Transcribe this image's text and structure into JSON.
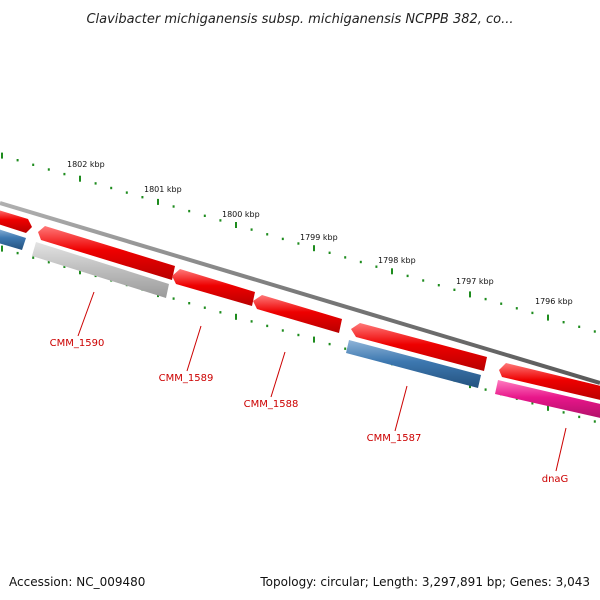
{
  "title": "Clavibacter michiganensis subsp. michiganensis NCPPB 382, co...",
  "accession": "Accession: NC_009480",
  "summary": "Topology: circular; Length: 3,297,891 bp; Genes: 3,043",
  "colors": {
    "forward_gene": "#ee0000",
    "reverse_gene": "#3d78b0",
    "pseudo_gene": "#bbbbbb",
    "rna_gene": "#e8168a",
    "backbone": "#7a7a7a",
    "ticks": "#1e8c1e",
    "label": "#cc0000"
  },
  "chart_data": {
    "type": "genome-map",
    "strand_legend": "forward strand above backbone, reverse strand below",
    "outer_scale_labels": [
      "1802 kbp",
      "1801 kbp",
      "1800 kbp",
      "1799 kbp",
      "1798 kbp",
      "1797 kbp",
      "1796 kbp"
    ],
    "genes": [
      {
        "id": "left-forward",
        "label": "",
        "strand": "forward",
        "type": "cds"
      },
      {
        "id": "left-reverse",
        "label": "",
        "strand": "reverse",
        "type": "cds"
      },
      {
        "id": "cmm1590",
        "label": "CMM_1590",
        "strand": "reverse",
        "type": "pseudo"
      },
      {
        "id": "cmm1590b",
        "label": "",
        "strand": "forward",
        "type": "cds"
      },
      {
        "id": "cmm1589",
        "label": "CMM_1589",
        "strand": "forward",
        "type": "cds"
      },
      {
        "id": "cmm1588",
        "label": "CMM_1588",
        "strand": "forward",
        "type": "cds"
      },
      {
        "id": "cmm1587f",
        "label": "",
        "strand": "forward",
        "type": "cds"
      },
      {
        "id": "cmm1587",
        "label": "CMM_1587",
        "strand": "reverse",
        "type": "cds"
      },
      {
        "id": "dnagf",
        "label": "",
        "strand": "forward",
        "type": "cds"
      },
      {
        "id": "dnag",
        "label": "dnaG",
        "strand": "reverse",
        "type": "rna"
      }
    ]
  }
}
